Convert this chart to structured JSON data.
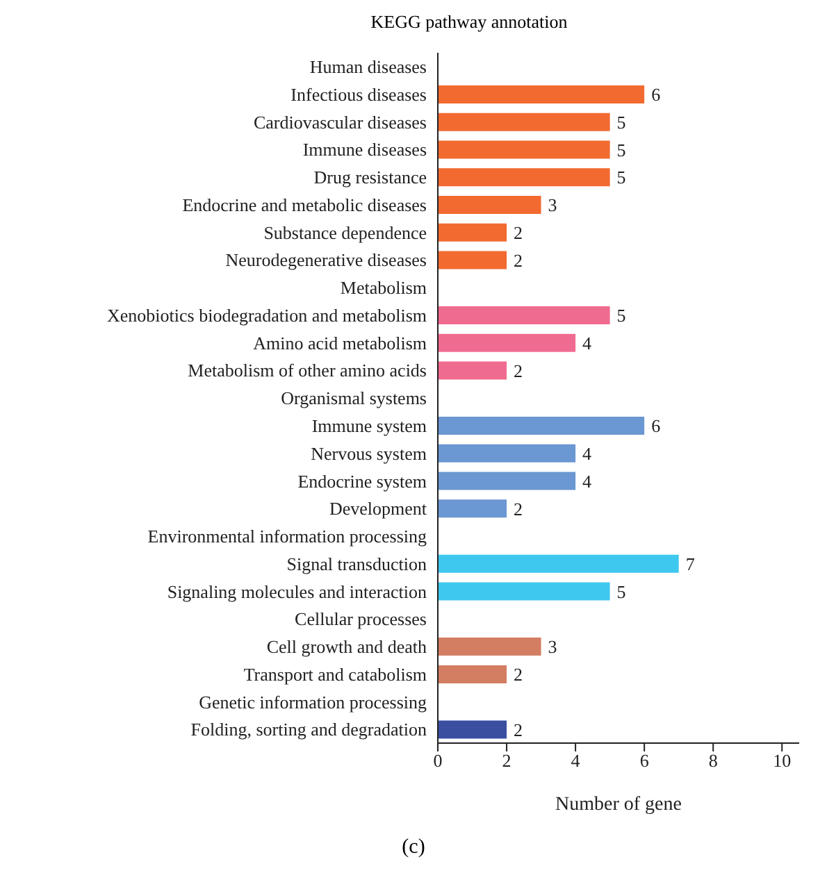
{
  "chart_data": {
    "type": "bar",
    "orientation": "horizontal",
    "title": "KEGG pathway annotation",
    "xlabel": "Number of gene",
    "categories": [
      "Human diseases",
      "Infectious diseases",
      "Cardiovascular diseases",
      "Immune diseases",
      "Drug resistance",
      "Endocrine and metabolic diseases",
      "Substance dependence",
      "Neurodegenerative diseases",
      "Metabolism",
      "Xenobiotics biodegradation and metabolism",
      "Amino acid metabolism",
      "Metabolism of other amino acids",
      "Organismal systems",
      "Immune system",
      "Nervous system",
      "Endocrine system",
      "Development",
      "Environmental information processing",
      "Signal transduction",
      "Signaling molecules and interaction",
      "Cellular processes",
      "Cell growth and death",
      "Transport and catabolism",
      "Genetic information processing",
      "Folding, sorting and degradation"
    ],
    "values": [
      null,
      6,
      5,
      5,
      5,
      3,
      2,
      2,
      null,
      5,
      4,
      2,
      null,
      6,
      4,
      4,
      2,
      null,
      7,
      5,
      null,
      3,
      2,
      null,
      2
    ],
    "colors": [
      "#f26a30",
      "#f26a30",
      "#f26a30",
      "#f26a30",
      "#f26a30",
      "#f26a30",
      "#f26a30",
      "#f26a30",
      "#f06b90",
      "#f06b90",
      "#f06b90",
      "#f06b90",
      "#6b97d2",
      "#6b97d2",
      "#6b97d2",
      "#6b97d2",
      "#6b97d2",
      "#3fc8ef",
      "#3fc8ef",
      "#3fc8ef",
      "#d37d62",
      "#d37d62",
      "#d37d62",
      "#3a4f9f",
      "#3a4f9f"
    ],
    "xlim": [
      0,
      10.5
    ],
    "xticks": [
      0,
      2,
      4,
      6,
      8,
      10
    ],
    "data_labels": true,
    "grid": false,
    "annotations": [
      "(c)"
    ]
  }
}
